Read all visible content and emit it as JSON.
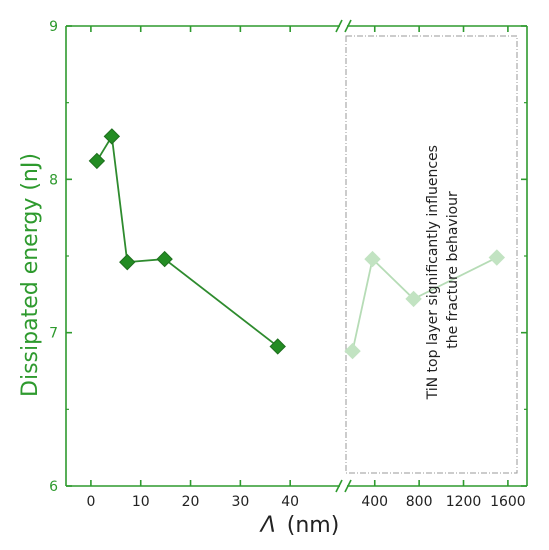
{
  "chart_data": {
    "type": "line",
    "xlabel_symbol": "Λ",
    "xlabel_unit": "(nm)",
    "ylabel": "Dissipated energy (nJ)",
    "ylim": [
      6,
      9
    ],
    "yticks": [
      "6",
      "7",
      "8",
      "9"
    ],
    "xaxis_broken": true,
    "xaxis_segment1": {
      "xlim": [
        -5,
        50
      ],
      "ticks": [
        0,
        10,
        20,
        30,
        40
      ],
      "tick_labels": [
        "0",
        "10",
        "20",
        "30",
        "40"
      ]
    },
    "xaxis_segment2": {
      "xlim": [
        150,
        1700
      ],
      "ticks": [
        400,
        800,
        1200,
        1600
      ],
      "tick_labels": [
        "400",
        "800",
        "1200",
        "1600"
      ]
    },
    "series": [
      {
        "segment": 1,
        "faded": false,
        "points": [
          {
            "x": 1.2,
            "y": 8.12
          },
          {
            "x": 4.2,
            "y": 8.28
          },
          {
            "x": 7.3,
            "y": 7.46
          },
          {
            "x": 14.8,
            "y": 7.48
          },
          {
            "x": 37.5,
            "y": 6.91
          }
        ]
      },
      {
        "segment": 2,
        "faded": true,
        "points": [
          {
            "x": 200,
            "y": 6.88
          },
          {
            "x": 380,
            "y": 7.48
          },
          {
            "x": 750,
            "y": 7.22
          },
          {
            "x": 1500,
            "y": 7.49
          }
        ]
      }
    ],
    "annotation": {
      "lines": [
        "TiN top layer significantly influences",
        "the fracture behaviour"
      ]
    },
    "colors": {
      "axis": "#2e9a2e",
      "marker": "#238c23",
      "marker_edge": "#1e6e1e",
      "line": "#2e8b2e",
      "faded_marker": "#c2e3c2",
      "faded_line": "#b6dcb6",
      "box": "#9a9a9a"
    }
  }
}
